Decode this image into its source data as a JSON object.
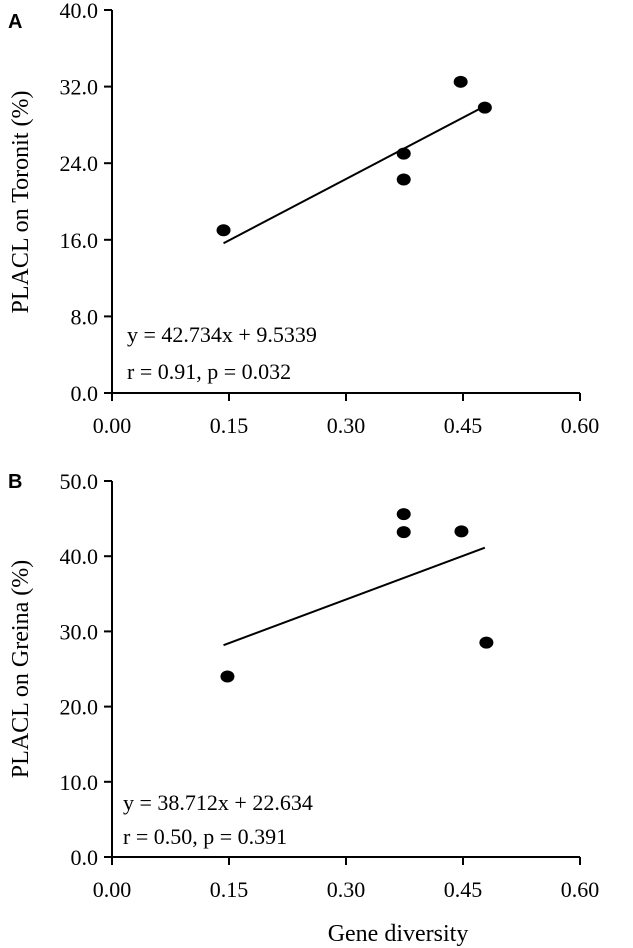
{
  "chart_data": [
    {
      "type": "scatter",
      "panel_label": "A",
      "ylabel": "PLACL on Toronit (%)",
      "xlabel": "",
      "xlim": [
        0,
        0.6
      ],
      "ylim": [
        0,
        40
      ],
      "x_ticks": [
        "0.00",
        "0.15",
        "0.30",
        "0.45",
        "0.60"
      ],
      "y_ticks": [
        "0.0",
        "8.0",
        "16.0",
        "24.0",
        "32.0",
        "40.0"
      ],
      "points": [
        {
          "x": 0.143,
          "y": 17.0
        },
        {
          "x": 0.374,
          "y": 25.0
        },
        {
          "x": 0.374,
          "y": 22.3
        },
        {
          "x": 0.447,
          "y": 32.5
        },
        {
          "x": 0.478,
          "y": 29.8
        }
      ],
      "trendline": {
        "slope": 42.734,
        "intercept": 9.5339,
        "x_range": [
          0.143,
          0.478
        ]
      },
      "annotations": [
        "y = 42.734x + 9.5339",
        "r = 0.91, p = 0.032"
      ],
      "grid": false,
      "legend": "none"
    },
    {
      "type": "scatter",
      "panel_label": "B",
      "ylabel": "PLACL on Greina (%)",
      "xlabel": "Gene diversity",
      "xlim": [
        0,
        0.6
      ],
      "ylim": [
        0,
        50
      ],
      "x_ticks": [
        "0.00",
        "0.15",
        "0.30",
        "0.45",
        "0.60"
      ],
      "y_ticks": [
        "0.0",
        "10.0",
        "20.0",
        "30.0",
        "40.0",
        "50.0"
      ],
      "points": [
        {
          "x": 0.148,
          "y": 24.0
        },
        {
          "x": 0.374,
          "y": 45.6
        },
        {
          "x": 0.374,
          "y": 43.2
        },
        {
          "x": 0.448,
          "y": 43.3
        },
        {
          "x": 0.48,
          "y": 28.5
        }
      ],
      "trendline": {
        "slope": 38.712,
        "intercept": 22.634,
        "x_range": [
          0.143,
          0.478
        ]
      },
      "annotations": [
        "y = 38.712x + 22.634",
        "r = 0.50, p = 0.391"
      ],
      "grid": false,
      "legend": "none"
    }
  ]
}
